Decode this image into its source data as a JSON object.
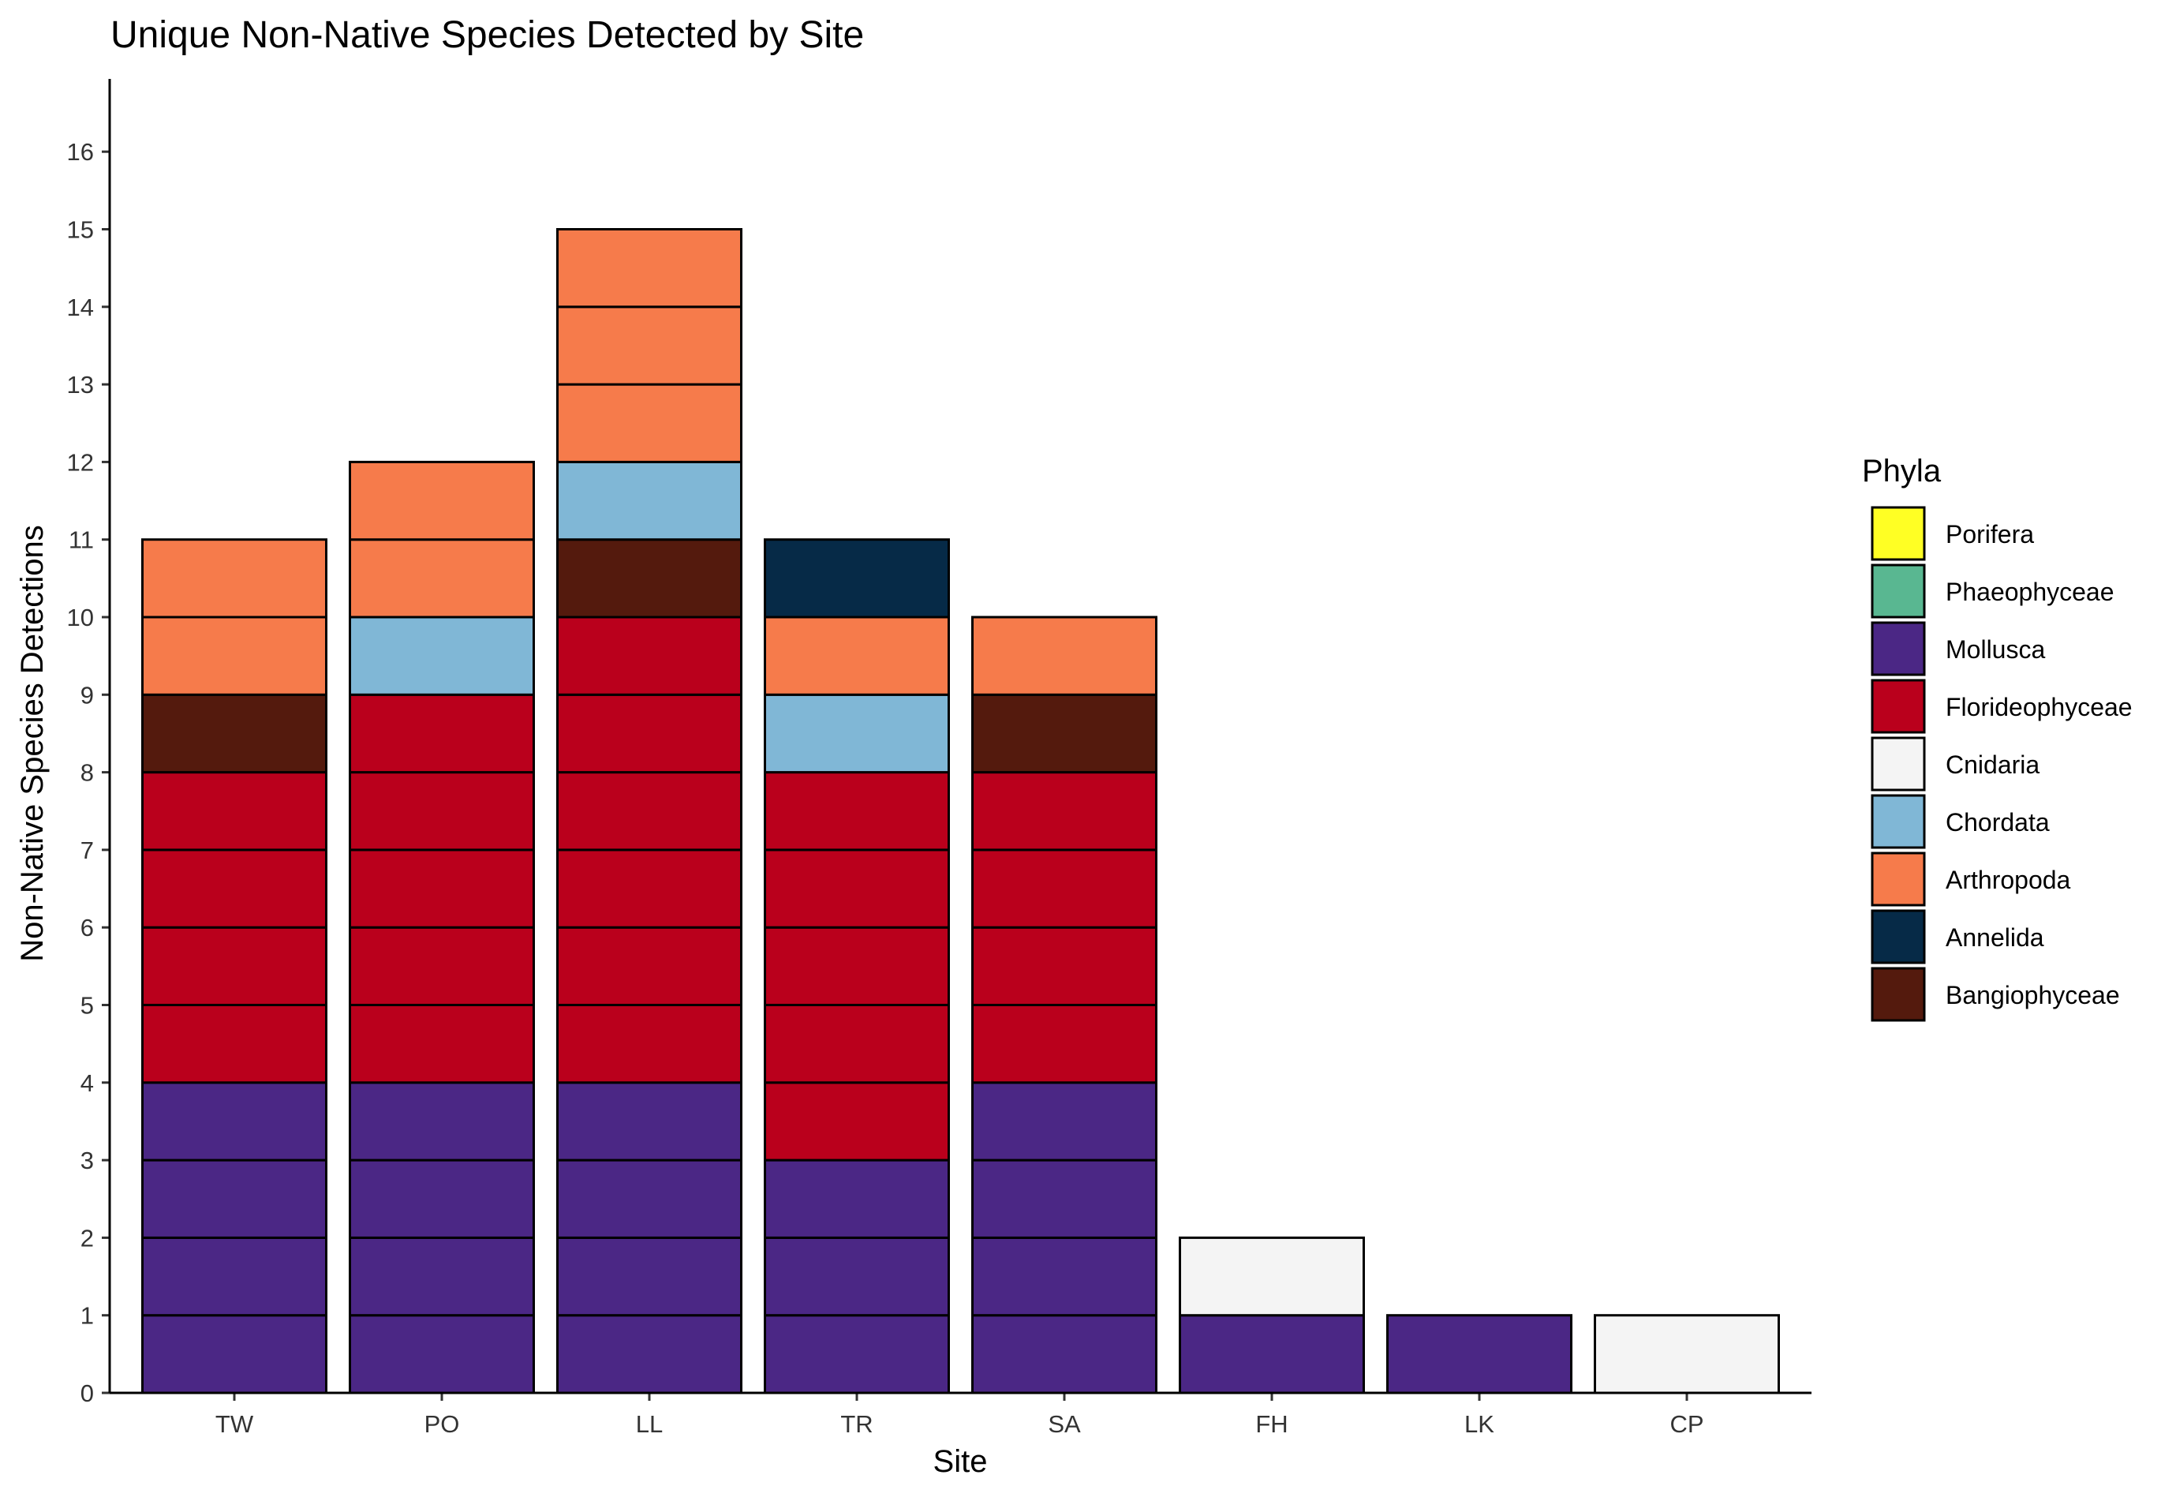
{
  "chart_data": {
    "type": "bar",
    "stacked": true,
    "title": "Unique Non-Native Species Detected by Site",
    "xlabel": "Site",
    "ylabel": "Non-Native Species Detections",
    "ylim": [
      0,
      17
    ],
    "yticks": [
      0,
      1,
      2,
      3,
      4,
      5,
      6,
      7,
      8,
      9,
      10,
      11,
      12,
      13,
      14,
      15,
      16
    ],
    "grid": false,
    "categories": [
      "TW",
      "PO",
      "LL",
      "TR",
      "SA",
      "FH",
      "LK",
      "CP"
    ],
    "series": [
      {
        "name": "Mollusca",
        "color": "#4B2785",
        "values": [
          4,
          4,
          4,
          3,
          4,
          1,
          1,
          0
        ]
      },
      {
        "name": "Florideophyceae",
        "color": "#BA001C",
        "values": [
          4,
          5,
          6,
          5,
          4,
          0,
          0,
          0
        ]
      },
      {
        "name": "Bangiophyceae",
        "color": "#541A0D",
        "values": [
          1,
          0,
          1,
          0,
          1,
          0,
          0,
          0
        ]
      },
      {
        "name": "Chordata",
        "color": "#80B7D6",
        "values": [
          0,
          1,
          1,
          1,
          0,
          0,
          0,
          0
        ]
      },
      {
        "name": "Arthropoda",
        "color": "#F67B4B",
        "values": [
          2,
          2,
          3,
          1,
          1,
          0,
          0,
          0
        ]
      },
      {
        "name": "Annelida",
        "color": "#062A47",
        "values": [
          0,
          0,
          0,
          1,
          0,
          0,
          0,
          0
        ]
      },
      {
        "name": "Cnidaria",
        "color": "#F4F4F4",
        "values": [
          0,
          0,
          0,
          0,
          0,
          1,
          0,
          1
        ]
      },
      {
        "name": "Phaeophyceae",
        "color": "#59B791",
        "values": [
          0,
          0,
          0,
          0,
          0,
          0,
          0,
          0
        ]
      },
      {
        "name": "Porifera",
        "color": "#FFFF24",
        "values": [
          0,
          0,
          0,
          0,
          0,
          0,
          0,
          0
        ]
      }
    ],
    "legend": {
      "title": "Phyla",
      "placement": "right",
      "entries": [
        {
          "label": "Porifera",
          "color": "#FFFF24"
        },
        {
          "label": "Phaeophyceae",
          "color": "#59B791"
        },
        {
          "label": "Mollusca",
          "color": "#4B2785"
        },
        {
          "label": "Florideophyceae",
          "color": "#BA001C"
        },
        {
          "label": "Cnidaria",
          "color": "#F4F4F4"
        },
        {
          "label": "Chordata",
          "color": "#80B7D6"
        },
        {
          "label": "Arthropoda",
          "color": "#F67B4B"
        },
        {
          "label": "Annelida",
          "color": "#062A47"
        },
        {
          "label": "Bangiophyceae",
          "color": "#541A0D"
        }
      ]
    }
  }
}
